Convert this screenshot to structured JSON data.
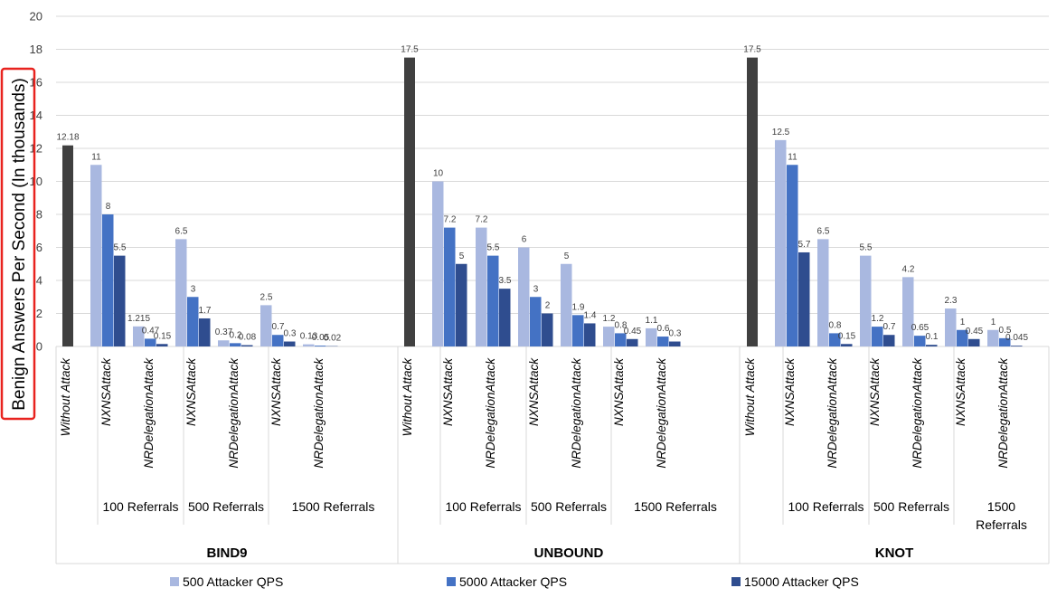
{
  "chart_data": {
    "type": "bar",
    "ylabel": "Benign Answers Per Second (In thousands)",
    "ylim": [
      0,
      20
    ],
    "yticks": [
      0,
      2,
      4,
      6,
      8,
      10,
      12,
      14,
      16,
      18,
      20
    ],
    "grid": "horizontal",
    "legend_position": "bottom",
    "legend": [
      {
        "name": "500 Attacker QPS",
        "color": "#a9b8e0"
      },
      {
        "name": "5000 Attacker QPS",
        "color": "#4472c4"
      },
      {
        "name": "15000 Attacker QPS",
        "color": "#2f4d8f"
      }
    ],
    "baseline_color": "#404040",
    "servers": [
      {
        "name": "BIND9",
        "baseline": {
          "label": "Without Attack",
          "value": 12.18,
          "value_label": "12.18"
        },
        "groups": [
          {
            "label": "100 Referrals",
            "categories": [
              {
                "label": "NXNSAttack",
                "values": [
                  11,
                  8,
                  5.5
                ],
                "value_labels": [
                  "11",
                  "8",
                  "5.5"
                ]
              },
              {
                "label": "NRDelegationAttack",
                "values": [
                  1.215,
                  0.47,
                  0.15
                ],
                "value_labels": [
                  "1.215",
                  "0.47",
                  "0.15"
                ]
              }
            ]
          },
          {
            "label": "500 Referrals",
            "categories": [
              {
                "label": "NXNSAttack",
                "values": [
                  6.5,
                  3,
                  1.7
                ],
                "value_labels": [
                  "6.5",
                  "3",
                  "1.7"
                ]
              },
              {
                "label": "NRDelegationAttack",
                "values": [
                  0.37,
                  0.2,
                  0.08
                ],
                "value_labels": [
                  "0.37",
                  "0.2",
                  "0.08"
                ]
              }
            ]
          },
          {
            "label": "1500 Referrals",
            "categories": [
              {
                "label": "NXNSAttack",
                "values": [
                  2.5,
                  0.7,
                  0.3
                ],
                "value_labels": [
                  "2.5",
                  "0.7",
                  "0.3"
                ]
              },
              {
                "label": "NRDelegationAttack",
                "values": [
                  0.13,
                  0.05,
                  0.02
                ],
                "value_labels": [
                  "0.13",
                  "0.05",
                  "0.02"
                ]
              }
            ]
          }
        ]
      },
      {
        "name": "UNBOUND",
        "baseline": {
          "label": "Without Attack",
          "value": 17.5,
          "value_label": "17.5"
        },
        "groups": [
          {
            "label": "100 Referrals",
            "categories": [
              {
                "label": "NXNSAttack",
                "values": [
                  10,
                  7.2,
                  5
                ],
                "value_labels": [
                  "10",
                  "7.2",
                  "5"
                ]
              },
              {
                "label": "NRDelegationAttack",
                "values": [
                  7.2,
                  5.5,
                  3.5
                ],
                "value_labels": [
                  "7.2",
                  "5.5",
                  "3.5"
                ]
              }
            ]
          },
          {
            "label": "500 Referrals",
            "categories": [
              {
                "label": "NXNSAttack",
                "values": [
                  6,
                  3,
                  2
                ],
                "value_labels": [
                  "6",
                  "3",
                  "2"
                ]
              },
              {
                "label": "NRDelegationAttack",
                "values": [
                  5,
                  1.9,
                  1.4
                ],
                "value_labels": [
                  "5",
                  "1.9",
                  "1.4"
                ]
              }
            ]
          },
          {
            "label": "1500 Referrals",
            "categories": [
              {
                "label": "NXNSAttack",
                "values": [
                  1.2,
                  0.8,
                  0.45
                ],
                "value_labels": [
                  "1.2",
                  "0.8",
                  "0.45"
                ]
              },
              {
                "label": "NRDelegationAttack",
                "values": [
                  1.1,
                  0.6,
                  0.3
                ],
                "value_labels": [
                  "1.1",
                  "0.6",
                  "0.3"
                ]
              }
            ]
          }
        ]
      },
      {
        "name": "KNOT",
        "baseline": {
          "label": "Without Attack",
          "value": 17.5,
          "value_label": "17.5"
        },
        "groups": [
          {
            "label": "100 Referrals",
            "categories": [
              {
                "label": "NXNSAttack",
                "values": [
                  12.5,
                  11,
                  5.7
                ],
                "value_labels": [
                  "12.5",
                  "11",
                  "5.7"
                ]
              },
              {
                "label": "NRDelegationAttack",
                "values": [
                  6.5,
                  0.8,
                  0.15
                ],
                "value_labels": [
                  "6.5",
                  "0.8",
                  "0.15"
                ]
              }
            ]
          },
          {
            "label": "500 Referrals",
            "categories": [
              {
                "label": "NXNSAttack",
                "values": [
                  5.5,
                  1.2,
                  0.7
                ],
                "value_labels": [
                  "5.5",
                  "1.2",
                  "0.7"
                ]
              },
              {
                "label": "NRDelegationAttack",
                "values": [
                  4.2,
                  0.65,
                  0.1
                ],
                "value_labels": [
                  "4.2",
                  "0.65",
                  "0.1"
                ]
              }
            ]
          },
          {
            "label": "1500 Referrals",
            "categories": [
              {
                "label": "NXNSAttack",
                "values": [
                  2.3,
                  1,
                  0.45
                ],
                "value_labels": [
                  "2.3",
                  "1",
                  "0.45"
                ]
              },
              {
                "label": "NRDelegationAttack",
                "values": [
                  1,
                  0.5,
                  0.045
                ],
                "value_labels": [
                  "1",
                  "0.5",
                  "0.045"
                ]
              }
            ]
          }
        ]
      }
    ]
  }
}
